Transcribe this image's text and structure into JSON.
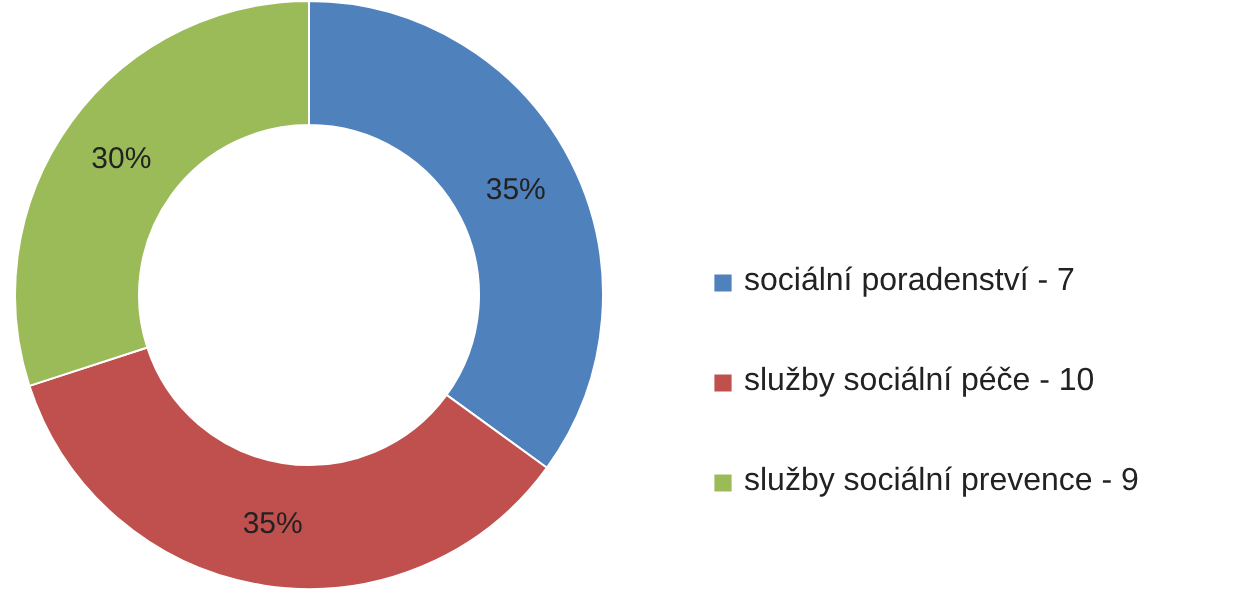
{
  "chart_data": {
    "type": "donut",
    "categories": [
      "sociální poradenství - 7",
      "služby sociální péče - 10",
      "služby sociální prevence - 9"
    ],
    "values": [
      35,
      35,
      30
    ],
    "colors": [
      "#4f81bd",
      "#c0504d",
      "#9bbb59"
    ],
    "value_labels": [
      "35%",
      "35%",
      "30%"
    ],
    "legend": "right"
  }
}
